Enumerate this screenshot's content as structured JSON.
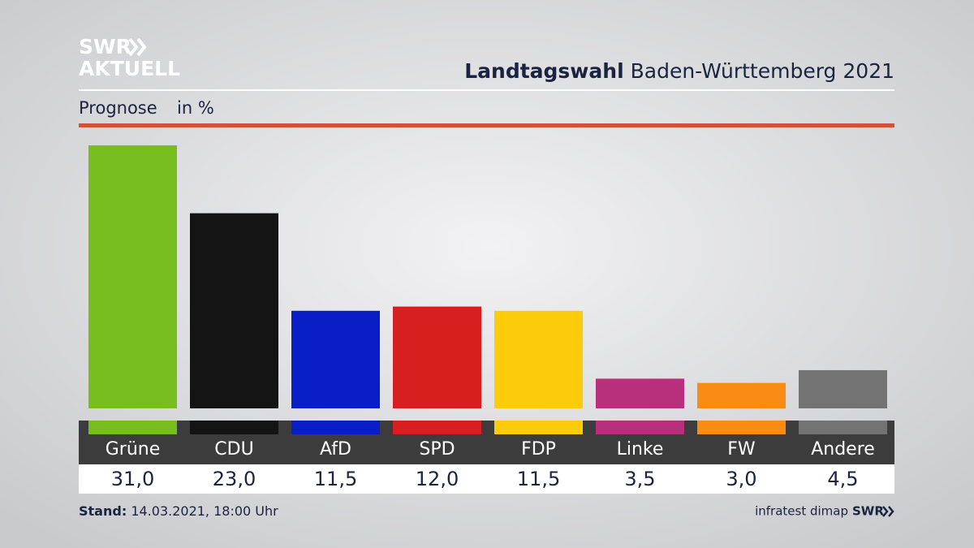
{
  "logo": {
    "line1": "SWR",
    "line2": "AKTUELL"
  },
  "chart_data": {
    "type": "bar",
    "title_bold": "Landtagswahl",
    "title": "Baden-Württemberg 2021",
    "subtitle": "Prognose",
    "unit": "in %",
    "categories": [
      "Grüne",
      "CDU",
      "AfD",
      "SPD",
      "FDP",
      "Linke",
      "FW",
      "Andere"
    ],
    "values": [
      31.0,
      23.0,
      11.5,
      12.0,
      11.5,
      3.5,
      3.0,
      4.5
    ],
    "value_labels": [
      "31,0",
      "23,0",
      "11,5",
      "12,0",
      "11,5",
      "3,5",
      "3,0",
      "4,5"
    ],
    "colors": [
      "#78bd1e",
      "#141414",
      "#0a1ec8",
      "#d71f1f",
      "#fccc0a",
      "#b82f7c",
      "#fa8c14",
      "#737373"
    ]
  },
  "footer": {
    "stand_label": "Stand:",
    "stand": "14.03.2021, 18:00 Uhr",
    "source": "infratest dimap",
    "brand": "SWR"
  }
}
